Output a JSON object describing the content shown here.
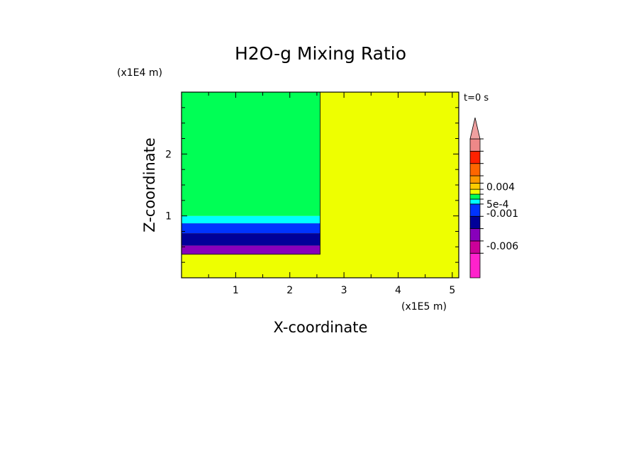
{
  "chart_data": {
    "type": "heatmap",
    "title": "H2O-g Mixing Ratio",
    "xlabel": "X-coordinate",
    "ylabel": "Z-coordinate",
    "x_unit": "(x1E5 m)",
    "y_unit": "(x1E4 m)",
    "time_label": "t=0 s",
    "xlim": [
      0,
      5.12
    ],
    "ylim": [
      0,
      3.0
    ],
    "x_ticks": [
      "1",
      "2",
      "3",
      "4",
      "5"
    ],
    "y_ticks": [
      "1",
      "2"
    ],
    "x_tick_values": [
      1,
      2,
      3,
      4,
      5
    ],
    "y_tick_values": [
      1,
      2
    ],
    "colors": {
      "background_field": "#eeff00",
      "green": "#00ff55",
      "cyan": "#00ffff",
      "blue": "#0033ff",
      "dark_blue": "#000099",
      "purple": "#8800bb",
      "outline": "#000000"
    },
    "regions": [
      {
        "name": "background",
        "x": [
          0,
          5.12
        ],
        "z": [
          0,
          3.0
        ],
        "color": "#eeff00"
      },
      {
        "name": "upper-left",
        "x": [
          0,
          2.56
        ],
        "z": [
          1.0,
          3.0
        ],
        "color": "#00ff55"
      },
      {
        "name": "band-cyan",
        "x": [
          0,
          2.56
        ],
        "z": [
          0.88,
          1.0
        ],
        "color": "#00ffff"
      },
      {
        "name": "band-blue",
        "x": [
          0,
          2.56
        ],
        "z": [
          0.72,
          0.88
        ],
        "color": "#0033ff"
      },
      {
        "name": "band-dark-blue",
        "x": [
          0,
          2.56
        ],
        "z": [
          0.52,
          0.72
        ],
        "color": "#000099"
      },
      {
        "name": "band-purple",
        "x": [
          0,
          2.56
        ],
        "z": [
          0.38,
          0.52
        ],
        "color": "#8800bb"
      }
    ],
    "colorbar": {
      "segments": [
        {
          "color": "#ff22cc",
          "weight": 2
        },
        {
          "color": "#cc0099",
          "weight": 1
        },
        {
          "color": "#8800bb",
          "weight": 1
        },
        {
          "color": "#000099",
          "weight": 1
        },
        {
          "color": "#0033ff",
          "weight": 1
        },
        {
          "color": "#00ffff",
          "weight": 0.4
        },
        {
          "color": "#00ff55",
          "weight": 0.4
        },
        {
          "color": "#eeff00",
          "weight": 0.4
        },
        {
          "color": "#ffcc00",
          "weight": 0.5
        },
        {
          "color": "#ff9900",
          "weight": 0.6
        },
        {
          "color": "#ff6600",
          "weight": 1
        },
        {
          "color": "#ff2200",
          "weight": 1
        },
        {
          "color": "#ee8888",
          "weight": 1
        }
      ],
      "extend_color": "#f0a0a0",
      "labels": [
        "0.004",
        "5e-4",
        "-0.001",
        "-0.006"
      ],
      "label_positions": [
        0.655,
        0.53,
        0.465,
        0.23
      ]
    }
  }
}
